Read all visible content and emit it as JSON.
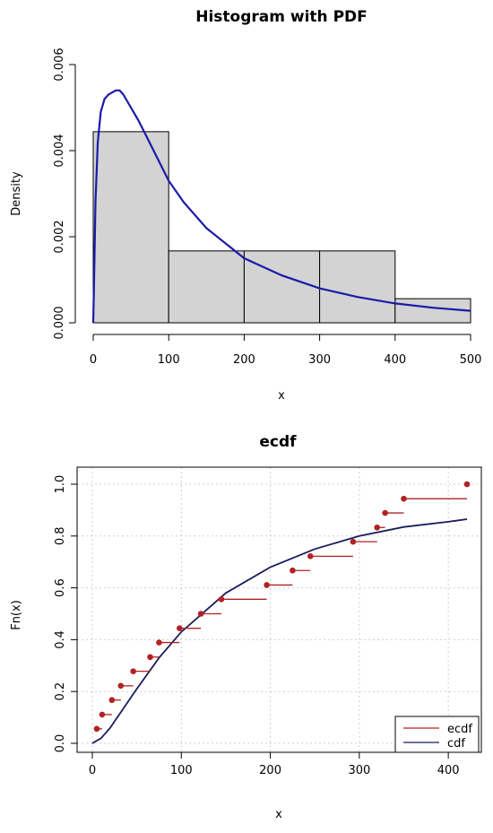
{
  "chart_data": [
    {
      "type": "bar",
      "title": "Histogram with PDF",
      "xlabel": "x",
      "ylabel": "Density",
      "xlim": [
        0,
        500
      ],
      "ylim": [
        0,
        0.006
      ],
      "x_ticks": [
        "0",
        "100",
        "200",
        "300",
        "400",
        "500"
      ],
      "y_ticks": [
        "0.000",
        "0.002",
        "0.004",
        "0.006"
      ],
      "bins": [
        {
          "from": 0,
          "to": 100,
          "density": 0.00444
        },
        {
          "from": 100,
          "to": 200,
          "density": 0.00167
        },
        {
          "from": 200,
          "to": 300,
          "density": 0.00167
        },
        {
          "from": 300,
          "to": 400,
          "density": 0.00167
        },
        {
          "from": 400,
          "to": 500,
          "density": 0.00056
        }
      ],
      "pdf_curve": {
        "color": "#1a1aa8",
        "x": [
          1,
          3,
          6,
          10,
          15,
          20,
          25,
          30,
          35,
          40,
          50,
          60,
          80,
          100,
          120,
          150,
          200,
          250,
          300,
          350,
          400,
          450,
          500
        ],
        "y": [
          0.0008,
          0.0028,
          0.0042,
          0.0049,
          0.0052,
          0.0053,
          0.00535,
          0.0054,
          0.0054,
          0.0053,
          0.005,
          0.0047,
          0.004,
          0.0033,
          0.0028,
          0.0022,
          0.0015,
          0.0011,
          0.0008,
          0.0006,
          0.00045,
          0.00035,
          0.00028
        ]
      },
      "bar_fill": "#d3d3d3",
      "grid": false,
      "legend": "none"
    },
    {
      "type": "scatter",
      "title": "ecdf",
      "xlabel": "x",
      "ylabel": "Fn(x)",
      "xlim": [
        0,
        420
      ],
      "ylim": [
        0,
        1
      ],
      "x_ticks": [
        "0",
        "100",
        "200",
        "300",
        "400"
      ],
      "y_ticks": [
        "0.0",
        "0.2",
        "0.4",
        "0.6",
        "0.8",
        "1.0"
      ],
      "grid": true,
      "legend_position": "bottom-right",
      "series": [
        {
          "name": "ecdf",
          "color": "#b22222",
          "x": [
            5,
            11,
            22,
            32,
            46,
            65,
            75,
            98,
            122,
            145,
            196,
            225,
            245,
            293,
            320,
            329,
            350,
            421
          ],
          "y": [
            0.056,
            0.111,
            0.167,
            0.222,
            0.278,
            0.333,
            0.389,
            0.444,
            0.5,
            0.556,
            0.611,
            0.667,
            0.722,
            0.778,
            0.833,
            0.889,
            0.944,
            1.0
          ]
        },
        {
          "name": "cdf",
          "color": "#1b1b5e",
          "x": [
            0,
            10,
            20,
            30,
            50,
            75,
            100,
            150,
            200,
            250,
            300,
            350,
            400,
            421
          ],
          "y": [
            0.0,
            0.02,
            0.06,
            0.11,
            0.21,
            0.33,
            0.43,
            0.58,
            0.68,
            0.75,
            0.8,
            0.835,
            0.855,
            0.865
          ]
        }
      ]
    }
  ]
}
